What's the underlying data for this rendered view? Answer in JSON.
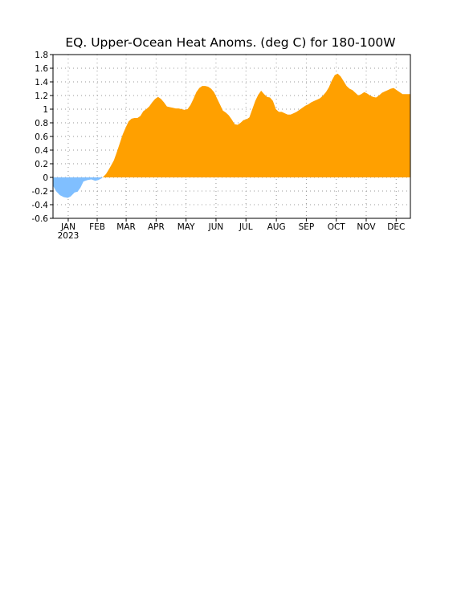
{
  "chart_data": {
    "type": "area",
    "title": "EQ. Upper-Ocean Heat Anoms. (deg C) for 180-100W",
    "xlabel": "",
    "ylabel": "",
    "ylim": [
      -0.6,
      1.8
    ],
    "yticks": [
      "1.8",
      "1.6",
      "1.4",
      "1.2",
      "1",
      "0.8",
      "0.6",
      "0.4",
      "0.2",
      "0",
      "-0.2",
      "-0.4",
      "-0.6"
    ],
    "ytick_values": [
      1.8,
      1.6,
      1.4,
      1.2,
      1.0,
      0.8,
      0.6,
      0.4,
      0.2,
      0.0,
      -0.2,
      -0.4,
      -0.6
    ],
    "months": [
      "JAN",
      "FEB",
      "MAR",
      "APR",
      "MAY",
      "JUN",
      "JUL",
      "AUG",
      "SEP",
      "OCT",
      "NOV",
      "DEC"
    ],
    "year_label": "2023",
    "grid": true,
    "colors": {
      "positive": "#ffa000",
      "negative": "#80bfff",
      "grid": "#999999"
    },
    "x_day": [
      1,
      4,
      8,
      12,
      16,
      19,
      23,
      26,
      29,
      32,
      36,
      40,
      44,
      47,
      51,
      55,
      58,
      60,
      63,
      66,
      69,
      72,
      75,
      78,
      81,
      84,
      87,
      90,
      93,
      96,
      99,
      102,
      105,
      108,
      111,
      114,
      117,
      120,
      123,
      126,
      129,
      132,
      135,
      138,
      141,
      144,
      147,
      150,
      153,
      156,
      159,
      162,
      165,
      168,
      171,
      174,
      177,
      180,
      183,
      186,
      189,
      192,
      195,
      198,
      201,
      204,
      207,
      210,
      213,
      216,
      219,
      222,
      225,
      228,
      231,
      234,
      237,
      240,
      243,
      246,
      249,
      252,
      255,
      258,
      261,
      264,
      267,
      270,
      273,
      276,
      279,
      282,
      285,
      288,
      291,
      294,
      297,
      300,
      303,
      306,
      309,
      312,
      315,
      318,
      321,
      324,
      327,
      330,
      333,
      336,
      339,
      342,
      345,
      348,
      351,
      354,
      357,
      360,
      363,
      365
    ],
    "values": [
      -0.12,
      -0.2,
      -0.26,
      -0.29,
      -0.3,
      -0.28,
      -0.22,
      -0.21,
      -0.15,
      -0.06,
      -0.04,
      -0.03,
      -0.05,
      -0.04,
      -0.01,
      0.05,
      0.12,
      0.17,
      0.25,
      0.37,
      0.5,
      0.63,
      0.73,
      0.82,
      0.86,
      0.87,
      0.87,
      0.9,
      0.97,
      1.0,
      1.04,
      1.1,
      1.15,
      1.18,
      1.15,
      1.1,
      1.04,
      1.03,
      1.02,
      1.01,
      1.01,
      1.0,
      0.99,
      1.0,
      1.06,
      1.15,
      1.25,
      1.31,
      1.34,
      1.34,
      1.33,
      1.3,
      1.25,
      1.16,
      1.07,
      0.98,
      0.95,
      0.91,
      0.85,
      0.78,
      0.77,
      0.8,
      0.84,
      0.85,
      0.88,
      1.0,
      1.12,
      1.21,
      1.27,
      1.22,
      1.18,
      1.17,
      1.12,
      1.0,
      0.96,
      0.96,
      0.94,
      0.92,
      0.92,
      0.94,
      0.96,
      0.99,
      1.02,
      1.05,
      1.07,
      1.1,
      1.12,
      1.14,
      1.16,
      1.2,
      1.25,
      1.32,
      1.42,
      1.5,
      1.52,
      1.48,
      1.41,
      1.34,
      1.3,
      1.28,
      1.24,
      1.2,
      1.22,
      1.25,
      1.23,
      1.2,
      1.18,
      1.17,
      1.2,
      1.24,
      1.26,
      1.28,
      1.3,
      1.31,
      1.28,
      1.25,
      1.22,
      1.22,
      1.22,
      1.22
    ]
  }
}
